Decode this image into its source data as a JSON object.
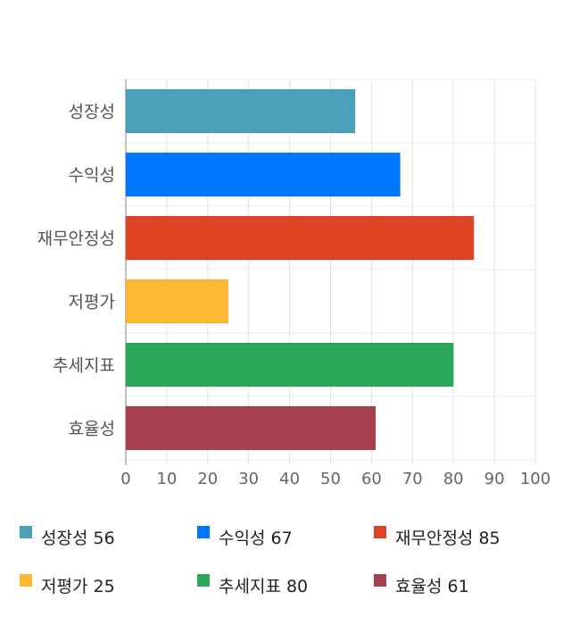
{
  "chart_data": {
    "type": "bar",
    "orientation": "horizontal",
    "categories": [
      "성장성",
      "수익성",
      "재무안정성",
      "저평가",
      "추세지표",
      "효율성"
    ],
    "values": [
      56,
      67,
      85,
      25,
      80,
      61
    ],
    "colors": [
      "#4aa1b9",
      "#0077ff",
      "#e04424",
      "#fdb833",
      "#2aa757",
      "#a6404e"
    ],
    "xlim": [
      0,
      100
    ],
    "xticks": [
      0,
      10,
      20,
      30,
      40,
      50,
      60,
      70,
      80,
      90,
      100
    ],
    "grid": true,
    "legend_position": "bottom",
    "legend": [
      "성장성 56",
      "수익성 67",
      "재무안정성 85",
      "저평가 25",
      "추세지표 80",
      "효율성 61"
    ]
  }
}
